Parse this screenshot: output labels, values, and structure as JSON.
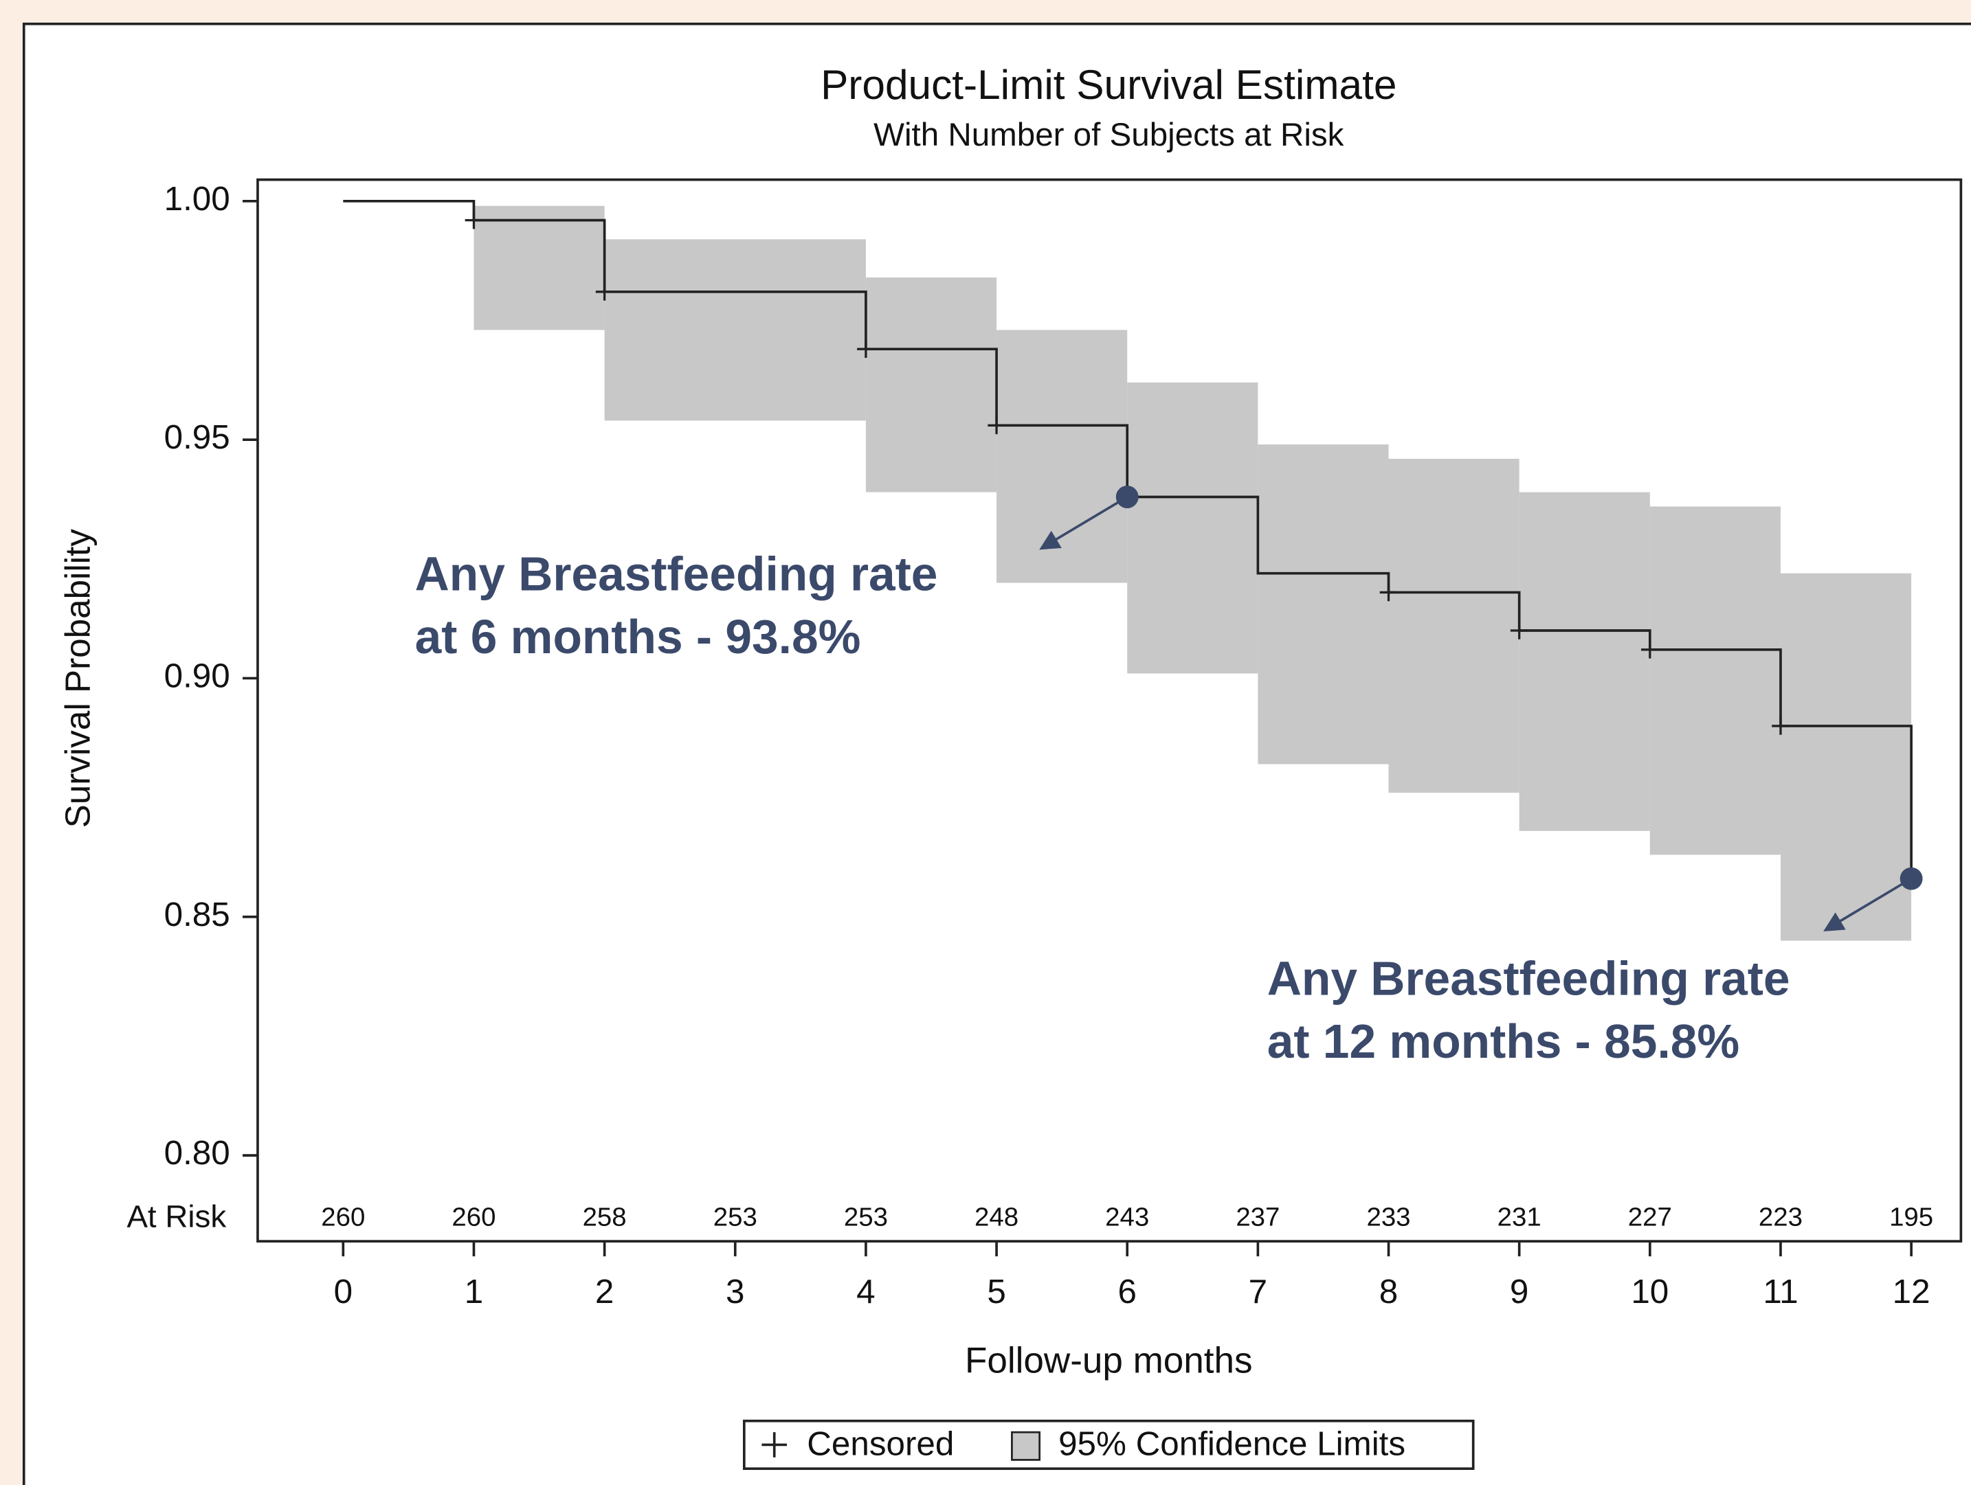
{
  "chart_data": {
    "type": "survival",
    "title": "Product-Limit Survival Estimate",
    "subtitle": "With Number of Subjects at Risk",
    "y_label": "Survival Probability",
    "x_label": "Follow-up months",
    "x": [
      0,
      1,
      2,
      4,
      5,
      6,
      7,
      8,
      9,
      10,
      11,
      12
    ],
    "survival": [
      1.0,
      0.996,
      0.981,
      0.969,
      0.953,
      0.938,
      0.922,
      0.918,
      0.91,
      0.906,
      0.89,
      0.858
    ],
    "ci_lower": [
      null,
      0.973,
      0.954,
      0.939,
      0.92,
      0.901,
      0.882,
      0.876,
      0.868,
      0.863,
      0.845,
      null
    ],
    "ci_upper": [
      null,
      0.999,
      0.992,
      0.984,
      0.973,
      0.962,
      0.949,
      0.946,
      0.939,
      0.936,
      0.922,
      null
    ],
    "line_color": "#222222",
    "band_color": "#c8c8c8",
    "censored": {
      "x": [
        1,
        2,
        4,
        5,
        8,
        9,
        10,
        11
      ],
      "y": [
        0.996,
        0.981,
        0.969,
        0.953,
        0.918,
        0.91,
        0.906,
        0.89
      ]
    },
    "at_risk_label": "At Risk",
    "at_risk": {
      "x": [
        0,
        1,
        2,
        3,
        4,
        5,
        6,
        7,
        8,
        9,
        10,
        11,
        12
      ],
      "values": [
        260,
        260,
        258,
        253,
        253,
        248,
        243,
        237,
        233,
        231,
        227,
        223,
        195
      ]
    },
    "annotations": [
      {
        "x": 6,
        "y": 0.938,
        "lines": [
          "Any Breastfeeding rate",
          "at 6 months - 93.8%"
        ]
      },
      {
        "x": 12,
        "y": 0.858,
        "lines": [
          "Any Breastfeeding rate",
          "at 12 months - 85.8%"
        ]
      }
    ],
    "annotation_color": "#3b4a6b",
    "xlim": [
      -0.654,
      12.38
    ],
    "ylim": [
      0.782,
      1.0045
    ],
    "xticks": [
      0,
      1,
      2,
      3,
      4,
      5,
      6,
      7,
      8,
      9,
      10,
      11,
      12
    ],
    "yticks": [
      {
        "value": 0.8,
        "label": "0.80"
      },
      {
        "value": 0.85,
        "label": "0.85"
      },
      {
        "value": 0.9,
        "label": "0.90"
      },
      {
        "value": 0.95,
        "label": "0.95"
      },
      {
        "value": 1.0,
        "label": "1.00"
      }
    ],
    "legend": [
      "Censored",
      "95% Confidence Limits"
    ]
  }
}
